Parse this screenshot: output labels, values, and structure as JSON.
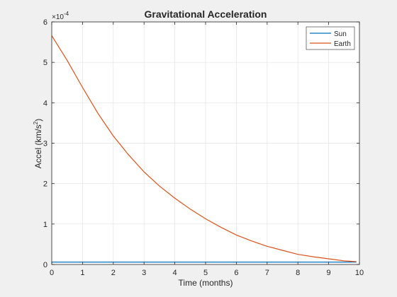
{
  "chart_data": {
    "type": "line",
    "title": "Gravitational Acceleration",
    "xlabel": "Time (months)",
    "ylabel_main": "Accel (km/s",
    "ylabel_sup": "2",
    "ylabel_close": ")",
    "exponent_base": "×10",
    "exponent_power": "-4",
    "xlim": [
      0,
      10
    ],
    "ylim": [
      0,
      6
    ],
    "exponent_scale": 0.0001,
    "x_ticks": [
      0,
      1,
      2,
      3,
      4,
      5,
      6,
      7,
      8,
      9,
      10
    ],
    "y_ticks": [
      0,
      1,
      2,
      3,
      4,
      5,
      6
    ],
    "grid": true,
    "legend_position": "top-right",
    "x": [
      0,
      0.5,
      1,
      1.5,
      2,
      2.5,
      3,
      3.5,
      4,
      4.5,
      5,
      5.5,
      6,
      6.5,
      7,
      7.5,
      8,
      8.5,
      9,
      9.5,
      9.9
    ],
    "series": [
      {
        "name": "Sun",
        "color": "#0072BD",
        "values": [
          0.059,
          0.059,
          0.059,
          0.059,
          0.059,
          0.059,
          0.059,
          0.059,
          0.059,
          0.059,
          0.059,
          0.059,
          0.059,
          0.059,
          0.059,
          0.059,
          0.059,
          0.059,
          0.059,
          0.059,
          0.059
        ]
      },
      {
        "name": "Earth",
        "color": "#D95319",
        "values": [
          5.66,
          5.05,
          4.38,
          3.74,
          3.18,
          2.71,
          2.29,
          1.94,
          1.64,
          1.37,
          1.13,
          0.92,
          0.73,
          0.58,
          0.45,
          0.35,
          0.25,
          0.19,
          0.14,
          0.09,
          0.07
        ]
      }
    ]
  }
}
